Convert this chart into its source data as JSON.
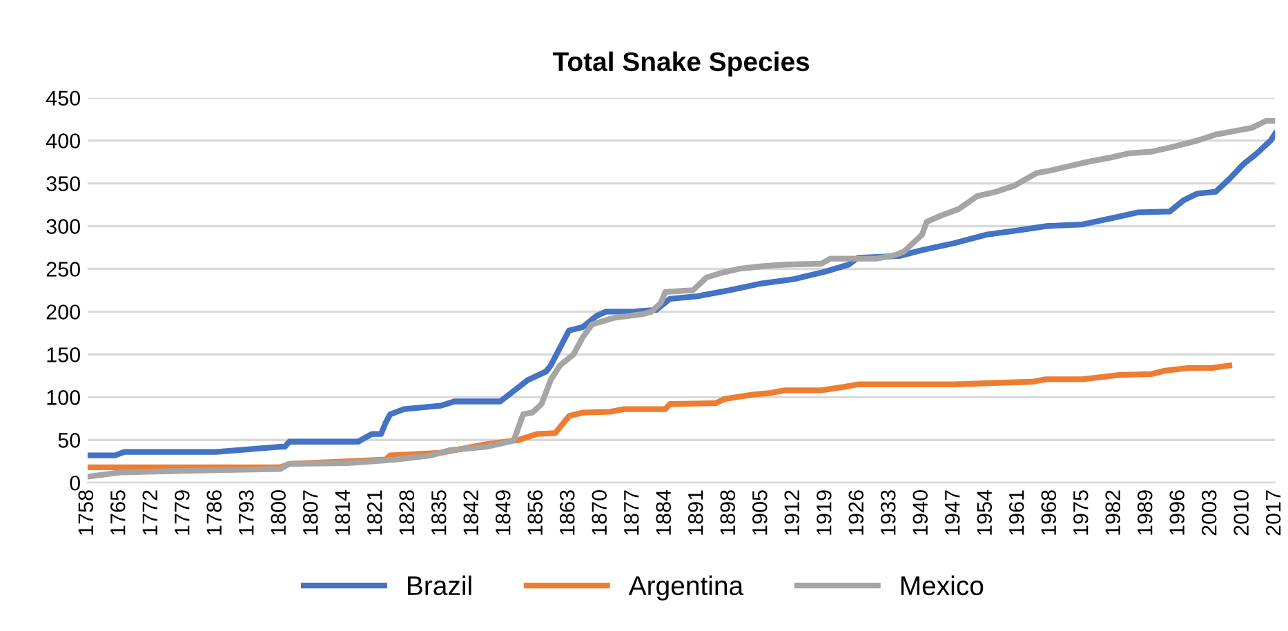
{
  "chart_data": {
    "type": "line",
    "title": "Total Snake Species",
    "xlim": [
      1758,
      2017
    ],
    "xticks": [
      1758,
      1765,
      1772,
      1779,
      1786,
      1793,
      1800,
      1807,
      1814,
      1821,
      1828,
      1835,
      1842,
      1849,
      1856,
      1863,
      1870,
      1877,
      1884,
      1891,
      1898,
      1905,
      1912,
      1919,
      1926,
      1933,
      1940,
      1947,
      1954,
      1961,
      1968,
      1975,
      1982,
      1989,
      1996,
      2003,
      2010,
      2017
    ],
    "ylim": [
      0,
      450
    ],
    "yticks": [
      0,
      50,
      100,
      150,
      200,
      250,
      300,
      350,
      400,
      450
    ],
    "grid": "y",
    "legend": "bottom",
    "marker": "none",
    "line_style": "solid",
    "series": [
      {
        "name": "Brazil",
        "color": "#4472c4",
        "x": [
          1758,
          1764,
          1766,
          1786,
          1800,
          1801,
          1802,
          1817,
          1820,
          1822,
          1823,
          1824,
          1827,
          1835,
          1838,
          1848,
          1854,
          1858,
          1859,
          1863,
          1866,
          1869,
          1871,
          1877,
          1882,
          1885,
          1891,
          1898,
          1905,
          1912,
          1919,
          1924,
          1926,
          1935,
          1940,
          1947,
          1954,
          1961,
          1967,
          1975,
          1982,
          1987,
          1994,
          1997,
          2000,
          2004,
          2007,
          2010,
          2013,
          2016,
          2017
        ],
        "values": [
          32,
          32,
          36,
          36,
          42,
          42,
          48,
          48,
          57,
          57,
          70,
          80,
          86,
          90,
          95,
          95,
          120,
          130,
          137,
          178,
          182,
          195,
          200,
          200,
          202,
          215,
          218,
          225,
          233,
          238,
          247,
          255,
          263,
          265,
          272,
          280,
          290,
          295,
          300,
          302,
          310,
          316,
          317,
          330,
          338,
          340,
          355,
          372,
          385,
          400,
          408
        ]
      },
      {
        "name": "Argentina",
        "color": "#ed7d31",
        "x": [
          1758,
          1800,
          1802,
          1815,
          1823,
          1824,
          1835,
          1840,
          1845,
          1852,
          1856,
          1860,
          1863,
          1866,
          1872,
          1875,
          1884,
          1885,
          1895,
          1897,
          1903,
          1907,
          1910,
          1918,
          1923,
          1926,
          1947,
          1958,
          1964,
          1967,
          1975,
          1983,
          1990,
          1993,
          1998,
          2003,
          2007
        ],
        "values": [
          18,
          18,
          22,
          25,
          27,
          32,
          35,
          40,
          45,
          50,
          57,
          58,
          78,
          82,
          83,
          86,
          86,
          92,
          93,
          98,
          103,
          105,
          108,
          108,
          112,
          115,
          115,
          117,
          118,
          121,
          121,
          126,
          127,
          131,
          134,
          134,
          137
        ]
      },
      {
        "name": "Mexico",
        "color": "#a5a5a5",
        "x": [
          1758,
          1765,
          1780,
          1800,
          1802,
          1815,
          1825,
          1833,
          1837,
          1845,
          1850,
          1851,
          1853,
          1855,
          1857,
          1859,
          1861,
          1864,
          1866,
          1868,
          1873,
          1879,
          1881,
          1883,
          1884,
          1890,
          1893,
          1896,
          1900,
          1905,
          1910,
          1918,
          1920,
          1930,
          1934,
          1936,
          1938,
          1940,
          1941,
          1944,
          1948,
          1952,
          1956,
          1960,
          1965,
          1968,
          1972,
          1976,
          1981,
          1985,
          1990,
          1995,
          2000,
          2004,
          2008,
          2012,
          2015,
          2017
        ],
        "values": [
          7,
          12,
          14,
          16,
          22,
          23,
          27,
          32,
          38,
          42,
          48,
          50,
          80,
          82,
          92,
          120,
          137,
          150,
          170,
          185,
          193,
          197,
          200,
          210,
          223,
          225,
          240,
          245,
          250,
          253,
          255,
          256,
          262,
          262,
          266,
          270,
          280,
          290,
          305,
          312,
          320,
          335,
          340,
          347,
          362,
          365,
          370,
          375,
          380,
          385,
          387,
          393,
          400,
          407,
          411,
          415,
          423,
          423
        ]
      }
    ]
  }
}
